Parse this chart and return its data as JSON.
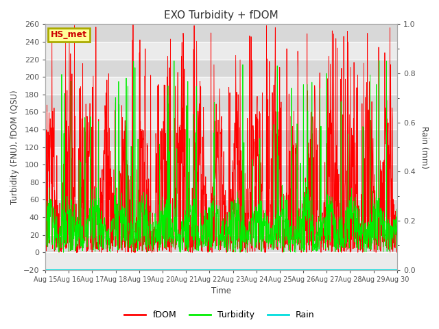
{
  "title": "EXO Turbidity + fDOM",
  "xlabel": "Time",
  "ylabel_left": "Turbidity (FNU), fDOM (QSU)",
  "ylabel_right": "Rain (mm)",
  "ylim_left": [
    -20,
    260
  ],
  "ylim_right": [
    0.0,
    1.0
  ],
  "yticks_left": [
    -20,
    0,
    20,
    40,
    60,
    80,
    100,
    120,
    140,
    160,
    180,
    200,
    220,
    240,
    260
  ],
  "yticks_right": [
    0.0,
    0.2,
    0.4,
    0.6,
    0.8,
    1.0
  ],
  "xtick_labels": [
    "Aug 15",
    "Aug 16",
    "Aug 17",
    "Aug 18",
    "Aug 19",
    "Aug 20",
    "Aug 21",
    "Aug 22",
    "Aug 23",
    "Aug 24",
    "Aug 25",
    "Aug 26",
    "Aug 27",
    "Aug 28",
    "Aug 29",
    "Aug 30"
  ],
  "label_box": "HS_met",
  "label_box_facecolor": "#FFFF99",
  "label_box_edgecolor": "#AAAA00",
  "label_box_textcolor": "#CC0000",
  "fdom_color": "#FF0000",
  "turbidity_color": "#00EE00",
  "rain_color": "#00DDDD",
  "background_color": "#DCDCDC",
  "band_color_light": "#EBEBEB",
  "band_color_dark": "#D8D8D8",
  "grid_color": "#FFFFFF",
  "legend_labels": [
    "fDOM",
    "Turbidity",
    "Rain"
  ],
  "seed": 12345,
  "n_days": 15,
  "figsize": [
    6.4,
    4.8
  ],
  "dpi": 100
}
